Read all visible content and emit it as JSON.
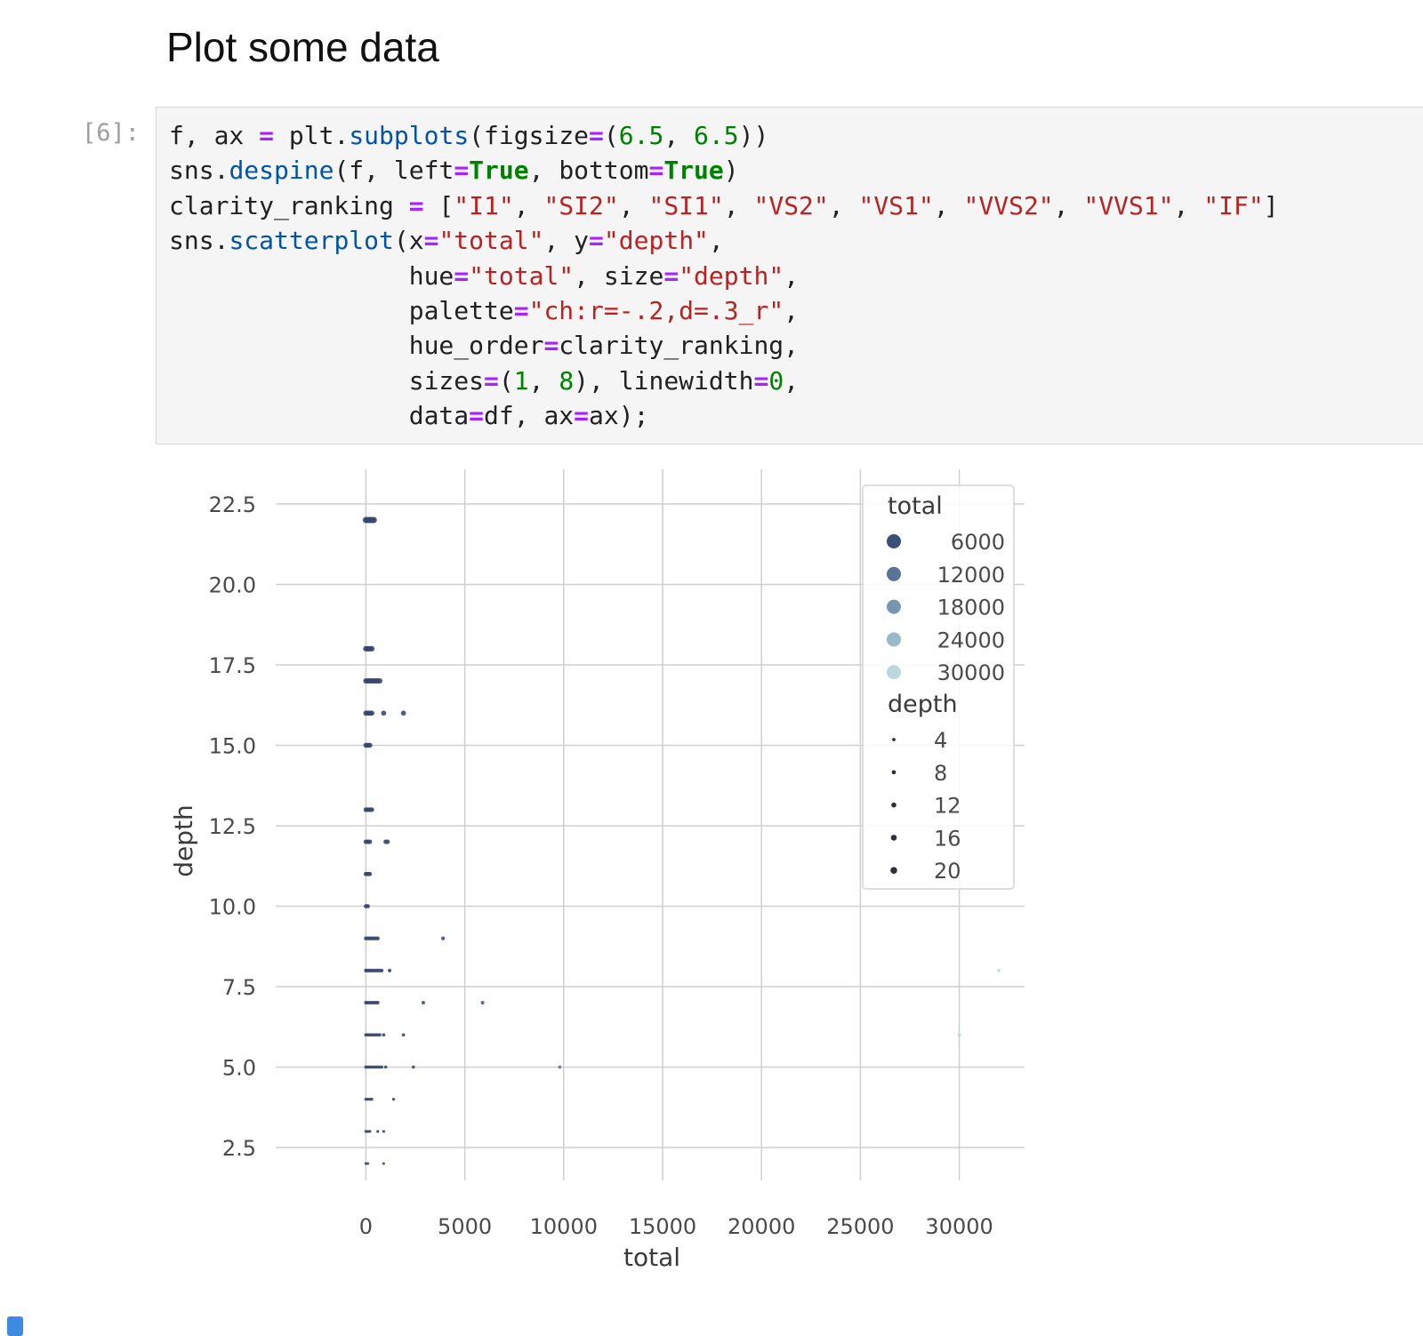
{
  "heading": "Plot some data",
  "cell": {
    "prompt": "[6]:",
    "code_lines": [
      [
        {
          "t": "f, ax ",
          "c": ""
        },
        {
          "t": "=",
          "c": "op"
        },
        {
          "t": " plt.",
          "c": ""
        },
        {
          "t": "subplots",
          "c": "fn"
        },
        {
          "t": "(figsize",
          "c": ""
        },
        {
          "t": "=",
          "c": "op"
        },
        {
          "t": "(",
          "c": ""
        },
        {
          "t": "6.5",
          "c": "num"
        },
        {
          "t": ", ",
          "c": ""
        },
        {
          "t": "6.5",
          "c": "num"
        },
        {
          "t": "))",
          "c": ""
        }
      ],
      [
        {
          "t": "sns.",
          "c": ""
        },
        {
          "t": "despine",
          "c": "fn"
        },
        {
          "t": "(f, left",
          "c": ""
        },
        {
          "t": "=",
          "c": "op"
        },
        {
          "t": "True",
          "c": "kw"
        },
        {
          "t": ", bottom",
          "c": ""
        },
        {
          "t": "=",
          "c": "op"
        },
        {
          "t": "True",
          "c": "kw"
        },
        {
          "t": ")",
          "c": ""
        }
      ],
      [
        {
          "t": "clarity_ranking ",
          "c": ""
        },
        {
          "t": "=",
          "c": "op"
        },
        {
          "t": " [",
          "c": ""
        },
        {
          "t": "\"I1\"",
          "c": "str"
        },
        {
          "t": ", ",
          "c": ""
        },
        {
          "t": "\"SI2\"",
          "c": "str"
        },
        {
          "t": ", ",
          "c": ""
        },
        {
          "t": "\"SI1\"",
          "c": "str"
        },
        {
          "t": ", ",
          "c": ""
        },
        {
          "t": "\"VS2\"",
          "c": "str"
        },
        {
          "t": ", ",
          "c": ""
        },
        {
          "t": "\"VS1\"",
          "c": "str"
        },
        {
          "t": ", ",
          "c": ""
        },
        {
          "t": "\"VVS2\"",
          "c": "str"
        },
        {
          "t": ", ",
          "c": ""
        },
        {
          "t": "\"VVS1\"",
          "c": "str"
        },
        {
          "t": ", ",
          "c": ""
        },
        {
          "t": "\"IF\"",
          "c": "str"
        },
        {
          "t": "]",
          "c": ""
        }
      ],
      [
        {
          "t": "sns.",
          "c": ""
        },
        {
          "t": "scatterplot",
          "c": "fn"
        },
        {
          "t": "(x",
          "c": ""
        },
        {
          "t": "=",
          "c": "op"
        },
        {
          "t": "\"total\"",
          "c": "str"
        },
        {
          "t": ", y",
          "c": ""
        },
        {
          "t": "=",
          "c": "op"
        },
        {
          "t": "\"depth\"",
          "c": "str"
        },
        {
          "t": ",",
          "c": ""
        }
      ],
      [
        {
          "t": "                hue",
          "c": ""
        },
        {
          "t": "=",
          "c": "op"
        },
        {
          "t": "\"total\"",
          "c": "str"
        },
        {
          "t": ", size",
          "c": ""
        },
        {
          "t": "=",
          "c": "op"
        },
        {
          "t": "\"depth\"",
          "c": "str"
        },
        {
          "t": ",",
          "c": ""
        }
      ],
      [
        {
          "t": "                palette",
          "c": ""
        },
        {
          "t": "=",
          "c": "op"
        },
        {
          "t": "\"ch:r=-.2,d=.3_r\"",
          "c": "str"
        },
        {
          "t": ",",
          "c": ""
        }
      ],
      [
        {
          "t": "                hue_order",
          "c": ""
        },
        {
          "t": "=",
          "c": "op"
        },
        {
          "t": "clarity_ranking,",
          "c": ""
        }
      ],
      [
        {
          "t": "                sizes",
          "c": ""
        },
        {
          "t": "=",
          "c": "op"
        },
        {
          "t": "(",
          "c": ""
        },
        {
          "t": "1",
          "c": "num"
        },
        {
          "t": ", ",
          "c": ""
        },
        {
          "t": "8",
          "c": "num"
        },
        {
          "t": "), linewidth",
          "c": ""
        },
        {
          "t": "=",
          "c": "op"
        },
        {
          "t": "0",
          "c": "num"
        },
        {
          "t": ",",
          "c": ""
        }
      ],
      [
        {
          "t": "                data",
          "c": ""
        },
        {
          "t": "=",
          "c": "op"
        },
        {
          "t": "df, ax",
          "c": ""
        },
        {
          "t": "=",
          "c": "op"
        },
        {
          "t": "ax);",
          "c": ""
        }
      ]
    ]
  },
  "chart_data": {
    "type": "scatter",
    "xlabel": "total",
    "ylabel": "depth",
    "xlim": [
      -3300,
      33300
    ],
    "ylim": [
      1.2,
      23.3
    ],
    "xticks": [
      0,
      5000,
      10000,
      15000,
      20000,
      25000,
      30000
    ],
    "xtick_labels": [
      "0",
      "5000",
      "10000",
      "15000",
      "20000",
      "25000",
      "30000"
    ],
    "yticks": [
      2.5,
      5.0,
      7.5,
      10.0,
      12.5,
      15.0,
      17.5,
      20.0,
      22.5
    ],
    "ytick_labels": [
      "2.5",
      "5.0",
      "7.5",
      "10.0",
      "12.5",
      "15.0",
      "17.5",
      "20.0",
      "22.5"
    ],
    "grid": true,
    "legend_position": "upper-right",
    "legend": {
      "hue_title": "total",
      "hue_entries": [
        {
          "label": "6000",
          "color": "#3c4f77"
        },
        {
          "label": "12000",
          "color": "#5a7396"
        },
        {
          "label": "18000",
          "color": "#7797b0"
        },
        {
          "label": "24000",
          "color": "#98b9c8"
        },
        {
          "label": "30000",
          "color": "#bcd8df"
        }
      ],
      "size_title": "depth",
      "size_entries": [
        {
          "label": "4",
          "size": 4
        },
        {
          "label": "8",
          "size": 8
        },
        {
          "label": "12",
          "size": 12
        },
        {
          "label": "16",
          "size": 16
        },
        {
          "label": "20",
          "size": 20
        }
      ]
    },
    "points": [
      [
        0,
        22
      ],
      [
        100,
        22
      ],
      [
        200,
        22
      ],
      [
        300,
        22
      ],
      [
        400,
        22
      ],
      [
        0,
        18
      ],
      [
        100,
        18
      ],
      [
        200,
        18
      ],
      [
        300,
        18
      ],
      [
        0,
        17
      ],
      [
        100,
        17
      ],
      [
        200,
        17
      ],
      [
        300,
        17
      ],
      [
        400,
        17
      ],
      [
        500,
        17
      ],
      [
        600,
        17
      ],
      [
        700,
        17
      ],
      [
        0,
        16
      ],
      [
        100,
        16
      ],
      [
        200,
        16
      ],
      [
        300,
        16
      ],
      [
        900,
        16
      ],
      [
        1900,
        16
      ],
      [
        0,
        15
      ],
      [
        100,
        15
      ],
      [
        200,
        15
      ],
      [
        0,
        13
      ],
      [
        100,
        13
      ],
      [
        200,
        13
      ],
      [
        300,
        13
      ],
      [
        0,
        12
      ],
      [
        100,
        12
      ],
      [
        200,
        12
      ],
      [
        1000,
        12
      ],
      [
        1100,
        12
      ],
      [
        0,
        11
      ],
      [
        100,
        11
      ],
      [
        200,
        11
      ],
      [
        0,
        10
      ],
      [
        100,
        10
      ],
      [
        0,
        9
      ],
      [
        100,
        9
      ],
      [
        200,
        9
      ],
      [
        300,
        9
      ],
      [
        400,
        9
      ],
      [
        500,
        9
      ],
      [
        600,
        9
      ],
      [
        3900,
        9
      ],
      [
        0,
        8
      ],
      [
        100,
        8
      ],
      [
        200,
        8
      ],
      [
        300,
        8
      ],
      [
        400,
        8
      ],
      [
        500,
        8
      ],
      [
        600,
        8
      ],
      [
        700,
        8
      ],
      [
        800,
        8
      ],
      [
        1200,
        8
      ],
      [
        32000,
        8
      ],
      [
        0,
        7
      ],
      [
        100,
        7
      ],
      [
        200,
        7
      ],
      [
        300,
        7
      ],
      [
        400,
        7
      ],
      [
        500,
        7
      ],
      [
        600,
        7
      ],
      [
        2900,
        7
      ],
      [
        5900,
        7
      ],
      [
        0,
        6
      ],
      [
        100,
        6
      ],
      [
        200,
        6
      ],
      [
        300,
        6
      ],
      [
        400,
        6
      ],
      [
        500,
        6
      ],
      [
        600,
        6
      ],
      [
        700,
        6
      ],
      [
        900,
        6
      ],
      [
        1900,
        6
      ],
      [
        30000,
        6
      ],
      [
        0,
        5
      ],
      [
        100,
        5
      ],
      [
        200,
        5
      ],
      [
        300,
        5
      ],
      [
        400,
        5
      ],
      [
        500,
        5
      ],
      [
        600,
        5
      ],
      [
        700,
        5
      ],
      [
        800,
        5
      ],
      [
        1000,
        5
      ],
      [
        2400,
        5
      ],
      [
        9800,
        5
      ],
      [
        0,
        4
      ],
      [
        100,
        4
      ],
      [
        200,
        4
      ],
      [
        300,
        4
      ],
      [
        1400,
        4
      ],
      [
        0,
        3
      ],
      [
        100,
        3
      ],
      [
        200,
        3
      ],
      [
        600,
        3
      ],
      [
        900,
        3
      ],
      [
        0,
        2
      ],
      [
        100,
        2
      ],
      [
        900,
        2
      ]
    ]
  }
}
